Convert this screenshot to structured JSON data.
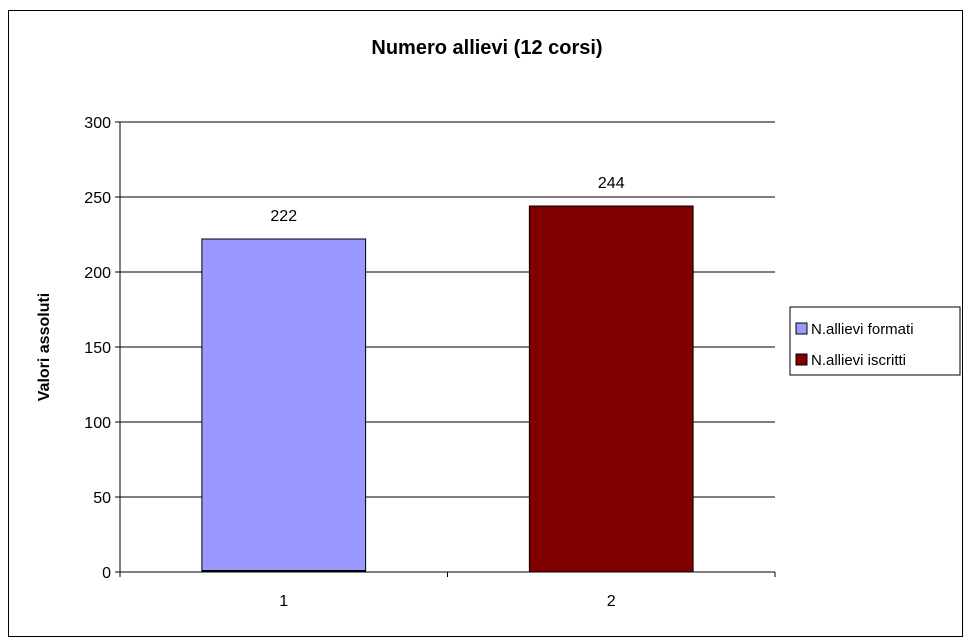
{
  "chart_data": {
    "type": "bar",
    "title": "Numero allievi (12 corsi)",
    "xlabel": "",
    "ylabel": "Valori assoluti",
    "categories": [
      "1",
      "2"
    ],
    "series": [
      {
        "name": "N.allievi formati",
        "values": [
          222,
          null
        ],
        "color": "#9999ff"
      },
      {
        "name": "N.allievi iscritti",
        "values": [
          null,
          244
        ],
        "color": "#800000"
      }
    ],
    "data_labels": [
      "222",
      "244"
    ],
    "ylim": [
      0,
      300
    ],
    "yticks": [
      0,
      50,
      100,
      150,
      200,
      250,
      300
    ],
    "grid": true,
    "legend_position": "right"
  }
}
